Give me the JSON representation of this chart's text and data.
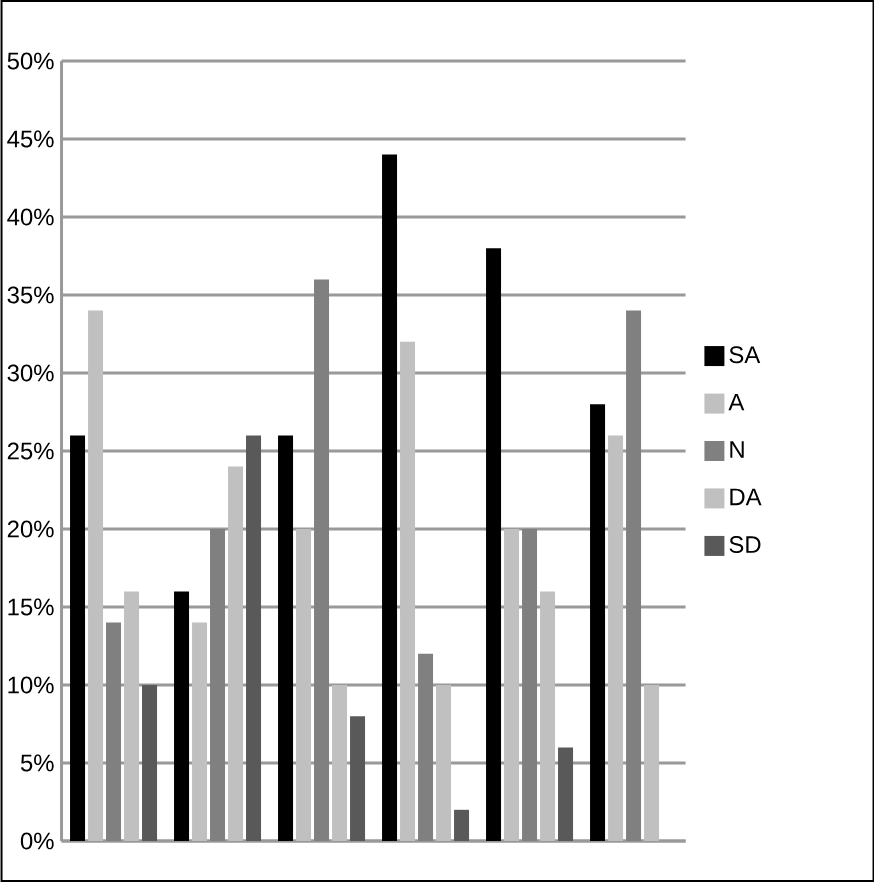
{
  "chart_data": {
    "type": "bar",
    "categories": [
      null,
      null,
      null,
      null,
      null,
      null
    ],
    "series": [
      {
        "name": "SA",
        "color": "#000000",
        "values": [
          26,
          16,
          26,
          44,
          38,
          28
        ]
      },
      {
        "name": "A",
        "color": "#c0c0c0",
        "values": [
          34,
          14,
          20,
          32,
          20,
          26
        ]
      },
      {
        "name": "N",
        "color": "#808080",
        "values": [
          14,
          20,
          36,
          12,
          20,
          34
        ]
      },
      {
        "name": "DA",
        "color": "#c0c0c0",
        "values": [
          16,
          24,
          10,
          10,
          16,
          10
        ]
      },
      {
        "name": "SD",
        "color": "#595959",
        "values": [
          10,
          26,
          8,
          2,
          6,
          null
        ]
      }
    ],
    "ylim": [
      0,
      50
    ],
    "yticks": [
      {
        "value": 0,
        "label": "0%"
      },
      {
        "value": 5,
        "label": "5%"
      },
      {
        "value": 10,
        "label": "10%"
      },
      {
        "value": 15,
        "label": "15%"
      },
      {
        "value": 20,
        "label": "20%"
      },
      {
        "value": 25,
        "label": "25%"
      },
      {
        "value": 30,
        "label": "30%"
      },
      {
        "value": 35,
        "label": "35%"
      },
      {
        "value": 40,
        "label": "40%"
      },
      {
        "value": 45,
        "label": "45%"
      },
      {
        "value": 50,
        "label": "50%"
      }
    ],
    "grid": "y",
    "legend": "right"
  }
}
